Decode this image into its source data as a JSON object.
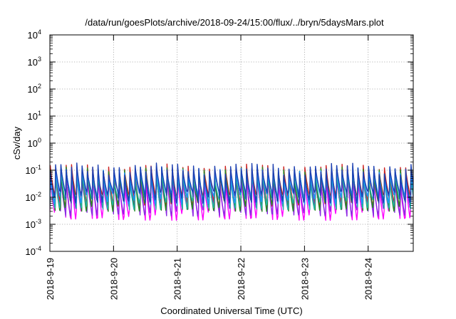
{
  "chart_data": {
    "type": "line",
    "title": "/data/run/goesPlots/archive/2018-09-24/15:00/flux/../bryn/5daysMars.plot",
    "xlabel": "Coordinated Universal Time (UTC)",
    "ylabel": "cSv/day",
    "yscale": "log",
    "ylim": [
      0.0001,
      10000
    ],
    "xlim": [
      "2018-09-19 00:00",
      "2018-09-24 17:00"
    ],
    "x_ticks": [
      "2018-9-19",
      "2018-9-20",
      "2018-9-21",
      "2018-9-22",
      "2018-9-23",
      "2018-9-24"
    ],
    "y_ticks": [
      {
        "base": "10",
        "exp": "-4"
      },
      {
        "base": "10",
        "exp": "-3"
      },
      {
        "base": "10",
        "exp": "-2"
      },
      {
        "base": "10",
        "exp": "-1"
      },
      {
        "base": "10",
        "exp": "0"
      },
      {
        "base": "10",
        "exp": "1"
      },
      {
        "base": "10",
        "exp": "2"
      },
      {
        "base": "10",
        "exp": "3"
      },
      {
        "base": "10",
        "exp": "4"
      }
    ],
    "grid": true,
    "pattern": {
      "period_hours": 2.0,
      "peak_range": [
        0.04,
        0.15
      ],
      "trough_range": [
        0.002,
        0.012
      ]
    },
    "series": [
      {
        "color": "#ff00ff",
        "peak": 0.055,
        "trough": 0.0028
      },
      {
        "color": "#8a2be2",
        "peak": 0.065,
        "trough": 0.004
      },
      {
        "color": "#cc2222",
        "peak": 0.11,
        "trough": 0.009
      },
      {
        "color": "#228b22",
        "peak": 0.085,
        "trough": 0.006
      },
      {
        "color": "#20b2aa",
        "peak": 0.075,
        "trough": 0.007
      },
      {
        "color": "#1e90ff",
        "peak": 0.095,
        "trough": 0.011
      },
      {
        "color": "#1c3fb0",
        "peak": 0.12,
        "trough": 0.012
      }
    ]
  }
}
